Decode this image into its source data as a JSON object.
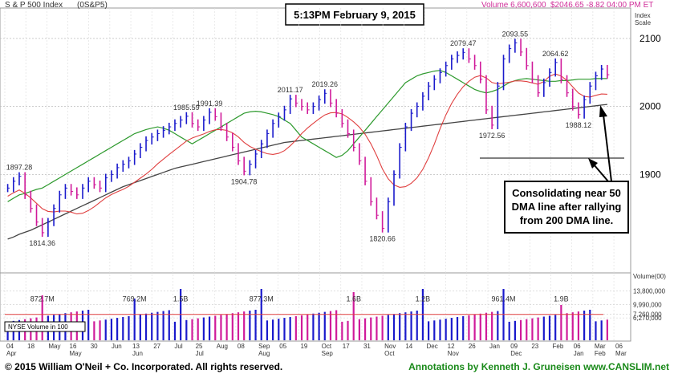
{
  "header": {
    "index_name": "S & P 500 Index",
    "symbol": "(0S&P5)",
    "timestamp": "5:13PM February 9, 2015",
    "volume_label": "Volume 6,600,600",
    "quote": "$2046.65 -8.82  04:00 PM ET",
    "scale_label_1": "Index",
    "scale_label_2": "Scale"
  },
  "annotation_box": {
    "lines": [
      "Consolidating near 50",
      "DMA line after rallying",
      "from 200 DMA line."
    ]
  },
  "volume_panel": {
    "label": "NYSE Volume in 100",
    "axis_title": "Volume(00)",
    "peak_labels": [
      "872.7M",
      "769.2M",
      "1.5B",
      "877.3M",
      "1.6B",
      "1.2B",
      "961.4M",
      "1.9B"
    ]
  },
  "footer": {
    "copyright": "© 2015  William O'Neil + Co. Incorporated. All rights reserved.",
    "annotations": "Annotations by Kenneth J. Gruneisen www.CANSLIM.net"
  },
  "colors": {
    "up_bar": "#1a1acc",
    "down_bar": "#d01a9a",
    "ma50": "#2e9a2e",
    "ma200": "#444444",
    "ma_short": "#e04040",
    "footer_green": "#1a8a1a"
  },
  "chart_data": {
    "type": "line",
    "title": "S & P 500 Index",
    "price_axis": {
      "ylim": [
        1760,
        2140
      ],
      "ticks": [
        1900,
        2000,
        2100
      ]
    },
    "volume_axis": {
      "ylim": [
        0,
        18000000
      ],
      "ticks": [
        6270000,
        7260000,
        9990000,
        13800000
      ]
    },
    "x_tick_labels": [
      "04",
      "18",
      "May",
      "16",
      "30",
      "Jun",
      "13",
      "27",
      "Jul",
      "25",
      "Aug",
      "08",
      "Sep",
      "05",
      "19",
      "Oct",
      "17",
      "31",
      "Nov",
      "14",
      "Dec",
      "12",
      "26",
      "Jan",
      "09",
      "23",
      "Feb",
      "06",
      "Mar",
      "06"
    ],
    "month_labels": [
      "Apr",
      "May",
      "Jun",
      "Jul",
      "Aug",
      "Sep",
      "Oct",
      "Nov",
      "Dec",
      "Jan",
      "Feb",
      "Mar"
    ],
    "labeled_points": [
      {
        "label": "1897.28",
        "value": 1897.28
      },
      {
        "label": "1814.36",
        "value": 1814.36
      },
      {
        "label": "1985.59",
        "value": 1985.59
      },
      {
        "label": "1991.39",
        "value": 1991.39
      },
      {
        "label": "1904.78",
        "value": 1904.78
      },
      {
        "label": "2011.17",
        "value": 2011.17
      },
      {
        "label": "2019.26",
        "value": 2019.26
      },
      {
        "label": "1820.66",
        "value": 1820.66
      },
      {
        "label": "2079.47",
        "value": 2079.47
      },
      {
        "label": "2093.55",
        "value": 2093.55
      },
      {
        "label": "1972.56",
        "value": 1972.56
      },
      {
        "label": "2064.62",
        "value": 2064.62
      },
      {
        "label": "1988.12",
        "value": 1988.12
      }
    ],
    "price_path": [
      1880,
      1890,
      1897.28,
      1870,
      1850,
      1830,
      1814.36,
      1830,
      1850,
      1870,
      1880,
      1875,
      1870,
      1880,
      1890,
      1885,
      1880,
      1895,
      1900,
      1910,
      1915,
      1920,
      1930,
      1940,
      1950,
      1955,
      1960,
      1965,
      1970,
      1975,
      1980,
      1985.59,
      1975,
      1970,
      1980,
      1991.39,
      1985,
      1970,
      1955,
      1940,
      1920,
      1904.78,
      1915,
      1930,
      1945,
      1960,
      1975,
      1985,
      1995,
      2011.17,
      2005,
      2000,
      1995,
      2000,
      2010,
      2019.26,
      2005,
      1990,
      1975,
      1960,
      1940,
      1920,
      1890,
      1860,
      1840,
      1820.66,
      1860,
      1900,
      1940,
      1970,
      1990,
      2000,
      2015,
      2030,
      2040,
      2050,
      2060,
      2070,
      2075,
      2079.47,
      2070,
      2060,
      2040,
      1995,
      1972.56,
      2030,
      2070,
      2085,
      2093.55,
      2080,
      2060,
      2040,
      2020,
      2035,
      2050,
      2064.62,
      2040,
      2020,
      2000,
      1988.12,
      2010,
      2030,
      2045,
      2055,
      2046.65
    ],
    "ma50_path": [
      1860,
      1865,
      1870,
      1872,
      1875,
      1878,
      1880,
      1885,
      1890,
      1895,
      1900,
      1905,
      1910,
      1915,
      1920,
      1925,
      1930,
      1935,
      1940,
      1945,
      1950,
      1955,
      1960,
      1963,
      1966,
      1968,
      1970,
      1968,
      1965,
      1960,
      1955,
      1950,
      1945,
      1950,
      1955,
      1960,
      1965,
      1970,
      1975,
      1980,
      1985,
      1990,
      1992,
      1993,
      1992,
      1990,
      1988,
      1985,
      1980,
      1975,
      1965,
      1955,
      1950,
      1945,
      1940,
      1935,
      1930,
      1925,
      1928,
      1935,
      1945,
      1955,
      1965,
      1975,
      1985,
      1995,
      2005,
      2015,
      2025,
      2035,
      2040,
      2045,
      2048,
      2050,
      2052,
      2053,
      2050,
      2045,
      2040,
      2035,
      2030,
      2025,
      2022,
      2020,
      2022,
      2025,
      2030,
      2035,
      2038,
      2040,
      2041,
      2040,
      2039,
      2038,
      2037,
      2037,
      2038,
      2038,
      2039,
      2040,
      2040,
      2040,
      2041,
      2041,
      2041
    ],
    "ma200_path": [
      1805,
      1808,
      1812,
      1815,
      1818,
      1822,
      1826,
      1830,
      1834,
      1838,
      1842,
      1846,
      1850,
      1854,
      1858,
      1862,
      1866,
      1870,
      1874,
      1878,
      1882,
      1885,
      1888,
      1891,
      1894,
      1897,
      1900,
      1903,
      1906,
      1909,
      1911,
      1913,
      1915,
      1917,
      1919,
      1921,
      1923,
      1925,
      1927,
      1929,
      1931,
      1933,
      1935,
      1937,
      1939,
      1941,
      1943,
      1945,
      1947,
      1948,
      1949,
      1950,
      1951,
      1952,
      1953,
      1954,
      1955,
      1956,
      1957,
      1958,
      1959,
      1960,
      1961,
      1962,
      1963,
      1964,
      1965,
      1966,
      1967,
      1968,
      1969,
      1970,
      1971,
      1972,
      1973,
      1974,
      1975,
      1976,
      1977,
      1978,
      1979,
      1980,
      1981,
      1982,
      1983,
      1984,
      1985,
      1986,
      1987,
      1988,
      1989,
      1990,
      1991,
      1992,
      1993,
      1994,
      1995,
      1996,
      1997,
      1998,
      1999,
      2000,
      2001,
      2002,
      2003
    ],
    "volume_ma": 7260000
  }
}
